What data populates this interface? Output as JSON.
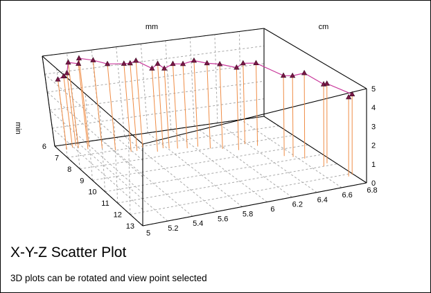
{
  "texts": {
    "title": "X-Y-Z Scatter Plot",
    "caption": "3D plots can be rotated and view point selected"
  },
  "colors": {
    "line": "#c8379a",
    "marker": "#7a1747",
    "drop": "#ef8c45",
    "grid": "#a8a8a8",
    "frame": "#000000"
  },
  "chart_data": {
    "type": "scatter",
    "is_3d": true,
    "title": "X-Y-Z Scatter Plot",
    "subtitle": "3D plots can be rotated and view point selected",
    "x_axis": {
      "label": "mm",
      "range": [
        5,
        6.8
      ],
      "ticks": [
        "5",
        "5.2",
        "5.4",
        "5.6",
        "5.8",
        "6",
        "6.2",
        "6.4",
        "6.6",
        "6.8"
      ]
    },
    "y_axis": {
      "label": "cm",
      "range": [
        6,
        13
      ],
      "ticks": [
        "6",
        "7",
        "8",
        "9",
        "10",
        "11",
        "12",
        "13"
      ]
    },
    "z_axis": {
      "label": "min",
      "range": [
        0,
        5
      ],
      "ticks": [
        "0",
        "1",
        "2",
        "3",
        "4",
        "5"
      ]
    },
    "grid": true,
    "markers": "triangle",
    "connecting_line": true,
    "drop_lines": true,
    "points": [
      {
        "x": 5.06,
        "y": 6.4,
        "z": 3.92
      },
      {
        "x": 5.12,
        "y": 6.3,
        "z": 3.98
      },
      {
        "x": 5.16,
        "y": 6.2,
        "z": 4.05
      },
      {
        "x": 5.16,
        "y": 6.4,
        "z": 4.78
      },
      {
        "x": 5.22,
        "y": 6.6,
        "z": 4.79
      },
      {
        "x": 5.25,
        "y": 6.4,
        "z": 4.93
      },
      {
        "x": 5.33,
        "y": 6.7,
        "z": 4.95
      },
      {
        "x": 5.41,
        "y": 7.0,
        "z": 4.86
      },
      {
        "x": 5.51,
        "y": 7.3,
        "z": 4.97
      },
      {
        "x": 5.56,
        "y": 7.3,
        "z": 4.94
      },
      {
        "x": 5.63,
        "y": 7.1,
        "z": 4.89
      },
      {
        "x": 5.7,
        "y": 7.6,
        "z": 4.69
      },
      {
        "x": 5.77,
        "y": 7.4,
        "z": 4.76
      },
      {
        "x": 5.81,
        "y": 7.5,
        "z": 4.51
      },
      {
        "x": 5.87,
        "y": 7.6,
        "z": 4.77
      },
      {
        "x": 5.94,
        "y": 7.7,
        "z": 4.75
      },
      {
        "x": 6.03,
        "y": 7.7,
        "z": 4.84
      },
      {
        "x": 6.1,
        "y": 8.0,
        "z": 4.79
      },
      {
        "x": 6.18,
        "y": 8.2,
        "z": 4.76
      },
      {
        "x": 6.28,
        "y": 8.5,
        "z": 4.62
      },
      {
        "x": 6.38,
        "y": 8.1,
        "z": 4.53
      },
      {
        "x": 6.45,
        "y": 8.4,
        "z": 4.62
      },
      {
        "x": 6.53,
        "y": 9.6,
        "z": 4.45
      },
      {
        "x": 6.58,
        "y": 9.8,
        "z": 4.48
      },
      {
        "x": 6.64,
        "y": 10.1,
        "z": 4.7
      },
      {
        "x": 6.69,
        "y": 11.0,
        "z": 4.46
      },
      {
        "x": 6.74,
        "y": 10.8,
        "z": 4.33
      },
      {
        "x": 6.79,
        "y": 12.1,
        "z": 4.3
      },
      {
        "x": 6.75,
        "y": 12.2,
        "z": 4.25
      }
    ]
  }
}
